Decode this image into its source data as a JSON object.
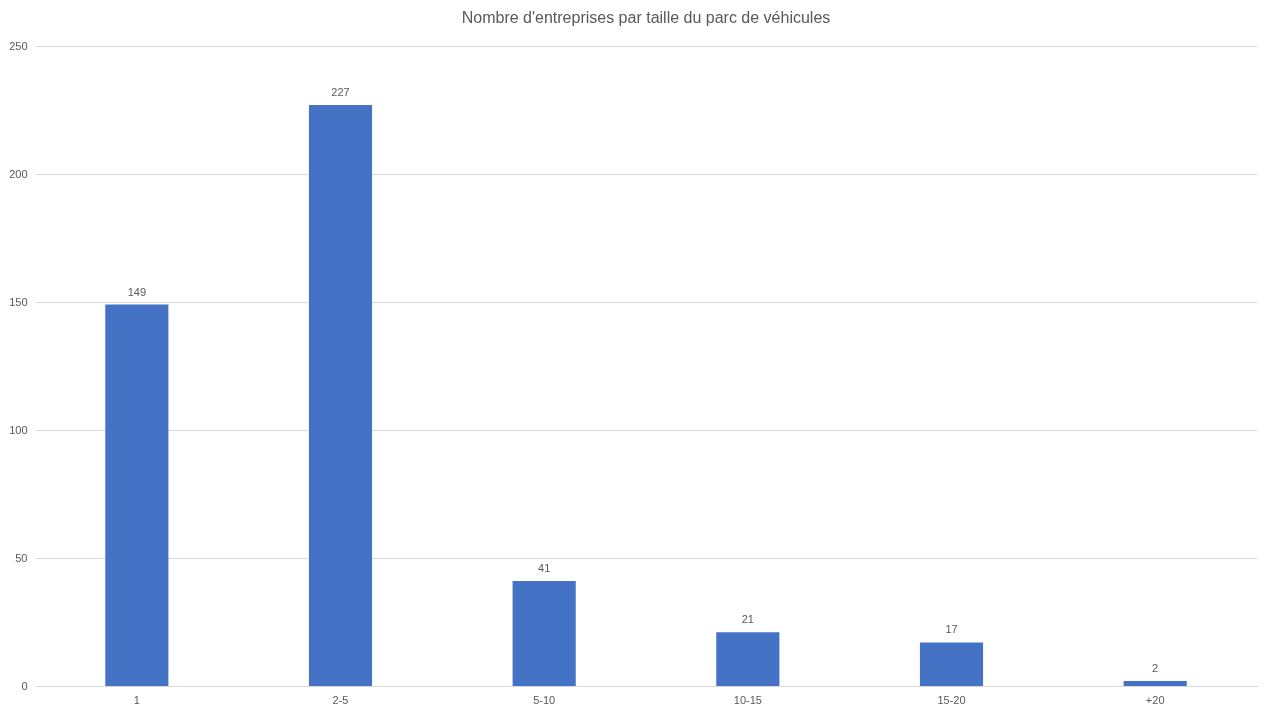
{
  "chart_data": {
    "type": "bar",
    "title": "Nombre d'entreprises par taille du parc de véhicules",
    "categories": [
      "1",
      "2-5",
      "5-10",
      "10-15",
      "15-20",
      "+20"
    ],
    "values": [
      149,
      227,
      41,
      21,
      17,
      2
    ],
    "color": "#4472c4",
    "ylim": [
      0,
      250
    ],
    "yticks": [
      0,
      50,
      100,
      150,
      200,
      250
    ],
    "grid": "y",
    "data_labels": true
  }
}
